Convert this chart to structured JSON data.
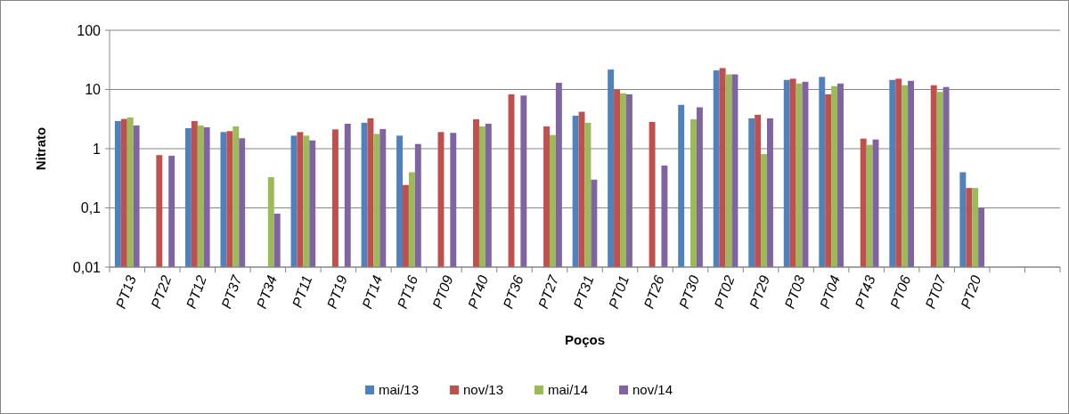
{
  "chart_data": {
    "type": "bar",
    "xlabel": "Poços",
    "ylabel": "Nitrato",
    "log": true,
    "grid": "y",
    "legend": "bottom",
    "ylim": [
      0.01,
      100
    ],
    "yticks": [
      {
        "value": 0.01,
        "label": "0,01"
      },
      {
        "value": 0.1,
        "label": "0,1"
      },
      1,
      10,
      100
    ],
    "categories": [
      "PT13",
      "PT22",
      "PT12",
      "PT37",
      "PT34",
      "PT11",
      "PT19",
      "PT14",
      "PT16",
      "PT09",
      "PT40",
      "PT36",
      "PT27",
      "PT31",
      "PT01",
      "PT26",
      "PT30",
      "PT02",
      "PT29",
      "PT03",
      "PT04",
      "PT43",
      "PT06",
      "PT07",
      "PT20",
      null,
      null
    ],
    "series": [
      {
        "name": "mai/13",
        "color": "#4f81bd",
        "values": [
          2.93,
          null,
          2.22,
          1.91,
          null,
          1.66,
          null,
          2.74,
          1.66,
          null,
          null,
          null,
          null,
          3.61,
          21.7,
          null,
          5.5,
          21,
          3.26,
          14.5,
          16.3,
          null,
          14.5,
          null,
          0.4,
          null,
          null
        ]
      },
      {
        "name": "nov/13",
        "color": "#c0504d",
        "values": [
          3.18,
          0.78,
          2.93,
          1.98,
          null,
          1.91,
          2.12,
          3.26,
          0.244,
          1.91,
          3.14,
          8.3,
          2.38,
          4.2,
          10,
          2.83,
          null,
          23,
          3.74,
          15.2,
          8.3,
          1.48,
          15.2,
          11.8,
          0.217,
          null,
          null
        ]
      },
      {
        "name": "mai/14",
        "color": "#9bbb59",
        "values": [
          3.37,
          null,
          2.47,
          2.38,
          0.33,
          1.66,
          null,
          1.78,
          0.4,
          null,
          2.38,
          null,
          1.7,
          2.74,
          8.6,
          null,
          3.14,
          18,
          0.81,
          12.6,
          11.4,
          1.16,
          11.8,
          9.1,
          0.217,
          null,
          null
        ]
      },
      {
        "name": "nov/14",
        "color": "#8064a2",
        "values": [
          2.47,
          0.76,
          2.3,
          1.5,
          0.08,
          1.38,
          2.64,
          2.15,
          1.2,
          1.85,
          2.64,
          7.9,
          13,
          0.3,
          8.3,
          0.52,
          5,
          18,
          3.26,
          13.5,
          12.6,
          1.43,
          14,
          11,
          0.1,
          null,
          null
        ]
      }
    ]
  }
}
